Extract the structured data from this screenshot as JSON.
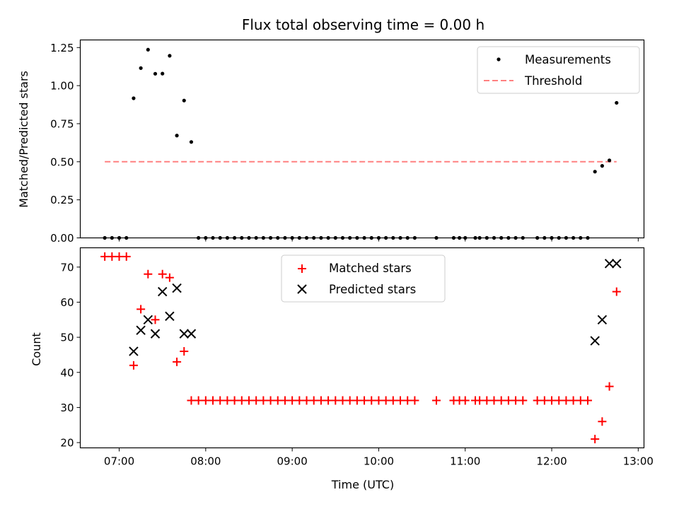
{
  "chart_data": [
    {
      "type": "scatter",
      "title": "Flux total observing time = 0.00 h",
      "xlabel": "",
      "ylabel": "Matched/Predicted stars",
      "x_unit": "time (UTC)",
      "xlim": [
        "06:33",
        "13:04"
      ],
      "ylim": [
        0,
        1.3
      ],
      "yticks": [
        "0.00",
        "0.25",
        "0.50",
        "0.75",
        "1.00",
        "1.25"
      ],
      "ytick_values": [
        0,
        0.25,
        0.5,
        0.75,
        1.0,
        1.25
      ],
      "legend": {
        "placement": "upper right",
        "entries": [
          "Measurements",
          "Threshold"
        ]
      },
      "series": [
        {
          "name": "Measurements",
          "marker": "dot",
          "color": "#000000",
          "points": [
            [
              "06:50",
              0
            ],
            [
              "06:55",
              0
            ],
            [
              "07:00",
              0
            ],
            [
              "07:05",
              0
            ],
            [
              "07:10",
              0.917
            ],
            [
              "07:15",
              1.115
            ],
            [
              "07:20",
              1.236
            ],
            [
              "07:25",
              1.078
            ],
            [
              "07:30",
              1.079
            ],
            [
              "07:35",
              1.196
            ],
            [
              "07:40",
              0.672
            ],
            [
              "07:45",
              0.902
            ],
            [
              "07:50",
              0.63
            ],
            [
              "07:55",
              0
            ],
            [
              "08:00",
              0
            ],
            [
              "08:05",
              0
            ],
            [
              "08:10",
              0
            ],
            [
              "08:15",
              0
            ],
            [
              "08:20",
              0
            ],
            [
              "08:25",
              0
            ],
            [
              "08:30",
              0
            ],
            [
              "08:35",
              0
            ],
            [
              "08:40",
              0
            ],
            [
              "08:45",
              0
            ],
            [
              "08:50",
              0
            ],
            [
              "08:55",
              0
            ],
            [
              "09:00",
              0
            ],
            [
              "09:05",
              0
            ],
            [
              "09:10",
              0
            ],
            [
              "09:15",
              0
            ],
            [
              "09:20",
              0
            ],
            [
              "09:25",
              0
            ],
            [
              "09:30",
              0
            ],
            [
              "09:35",
              0
            ],
            [
              "09:40",
              0
            ],
            [
              "09:45",
              0
            ],
            [
              "09:50",
              0
            ],
            [
              "09:55",
              0
            ],
            [
              "10:00",
              0
            ],
            [
              "10:05",
              0
            ],
            [
              "10:10",
              0
            ],
            [
              "10:15",
              0
            ],
            [
              "10:20",
              0
            ],
            [
              "10:25",
              0
            ],
            [
              "10:40",
              0
            ],
            [
              "10:52",
              0
            ],
            [
              "10:56",
              0
            ],
            [
              "11:00",
              0
            ],
            [
              "11:07",
              0
            ],
            [
              "11:10",
              0
            ],
            [
              "11:15",
              0
            ],
            [
              "11:20",
              0
            ],
            [
              "11:25",
              0
            ],
            [
              "11:30",
              0
            ],
            [
              "11:35",
              0
            ],
            [
              "11:40",
              0
            ],
            [
              "11:50",
              0
            ],
            [
              "11:55",
              0
            ],
            [
              "12:00",
              0
            ],
            [
              "12:05",
              0
            ],
            [
              "12:10",
              0
            ],
            [
              "12:15",
              0
            ],
            [
              "12:20",
              0
            ],
            [
              "12:25",
              0
            ],
            [
              "12:30",
              0.435
            ],
            [
              "12:35",
              0.473
            ],
            [
              "12:40",
              0.509
            ],
            [
              "12:45",
              0.887
            ]
          ]
        },
        {
          "name": "Threshold",
          "style": "dashed",
          "color": "#ff8080",
          "points": [
            [
              "06:50",
              0.5
            ],
            [
              "12:45",
              0.5
            ]
          ]
        }
      ]
    },
    {
      "type": "scatter",
      "title": "",
      "xlabel": "Time (UTC)",
      "ylabel": "Count",
      "x_unit": "time (UTC)",
      "xlim": [
        "06:33",
        "13:04"
      ],
      "ylim": [
        18.5,
        75.5
      ],
      "xticks": [
        "07:00",
        "08:00",
        "09:00",
        "10:00",
        "11:00",
        "12:00",
        "13:00"
      ],
      "yticks": [
        "20",
        "30",
        "40",
        "50",
        "60",
        "70"
      ],
      "ytick_values": [
        20,
        30,
        40,
        50,
        60,
        70
      ],
      "legend": {
        "placement": "upper center",
        "entries": [
          "Matched stars",
          "Predicted stars"
        ]
      },
      "series": [
        {
          "name": "Matched stars",
          "marker": "plus",
          "color": "#ff0000",
          "points": [
            [
              "06:50",
              73
            ],
            [
              "06:55",
              73
            ],
            [
              "07:00",
              73
            ],
            [
              "07:05",
              73
            ],
            [
              "07:10",
              42
            ],
            [
              "07:15",
              58
            ],
            [
              "07:20",
              68
            ],
            [
              "07:25",
              55
            ],
            [
              "07:30",
              68
            ],
            [
              "07:35",
              67
            ],
            [
              "07:40",
              43
            ],
            [
              "07:45",
              46
            ],
            [
              "07:50",
              32
            ],
            [
              "07:55",
              32
            ],
            [
              "08:00",
              32
            ],
            [
              "08:05",
              32
            ],
            [
              "08:10",
              32
            ],
            [
              "08:15",
              32
            ],
            [
              "08:20",
              32
            ],
            [
              "08:25",
              32
            ],
            [
              "08:30",
              32
            ],
            [
              "08:35",
              32
            ],
            [
              "08:40",
              32
            ],
            [
              "08:45",
              32
            ],
            [
              "08:50",
              32
            ],
            [
              "08:55",
              32
            ],
            [
              "09:00",
              32
            ],
            [
              "09:05",
              32
            ],
            [
              "09:10",
              32
            ],
            [
              "09:15",
              32
            ],
            [
              "09:20",
              32
            ],
            [
              "09:25",
              32
            ],
            [
              "09:30",
              32
            ],
            [
              "09:35",
              32
            ],
            [
              "09:40",
              32
            ],
            [
              "09:45",
              32
            ],
            [
              "09:50",
              32
            ],
            [
              "09:55",
              32
            ],
            [
              "10:00",
              32
            ],
            [
              "10:05",
              32
            ],
            [
              "10:10",
              32
            ],
            [
              "10:15",
              32
            ],
            [
              "10:20",
              32
            ],
            [
              "10:25",
              32
            ],
            [
              "10:40",
              32
            ],
            [
              "10:52",
              32
            ],
            [
              "10:56",
              32
            ],
            [
              "11:00",
              32
            ],
            [
              "11:07",
              32
            ],
            [
              "11:10",
              32
            ],
            [
              "11:15",
              32
            ],
            [
              "11:20",
              32
            ],
            [
              "11:25",
              32
            ],
            [
              "11:30",
              32
            ],
            [
              "11:35",
              32
            ],
            [
              "11:40",
              32
            ],
            [
              "11:50",
              32
            ],
            [
              "11:55",
              32
            ],
            [
              "12:00",
              32
            ],
            [
              "12:05",
              32
            ],
            [
              "12:10",
              32
            ],
            [
              "12:15",
              32
            ],
            [
              "12:20",
              32
            ],
            [
              "12:25",
              32
            ],
            [
              "12:30",
              21
            ],
            [
              "12:35",
              26
            ],
            [
              "12:40",
              36
            ],
            [
              "12:45",
              63
            ]
          ]
        },
        {
          "name": "Predicted stars",
          "marker": "x",
          "color": "#000000",
          "points": [
            [
              "07:10",
              46
            ],
            [
              "07:15",
              52
            ],
            [
              "07:20",
              55
            ],
            [
              "07:25",
              51
            ],
            [
              "07:30",
              63
            ],
            [
              "07:35",
              56
            ],
            [
              "07:40",
              64
            ],
            [
              "07:45",
              51
            ],
            [
              "07:50",
              51
            ],
            [
              "12:30",
              49
            ],
            [
              "12:35",
              55
            ],
            [
              "12:40",
              71
            ],
            [
              "12:45",
              71
            ]
          ]
        }
      ]
    }
  ]
}
